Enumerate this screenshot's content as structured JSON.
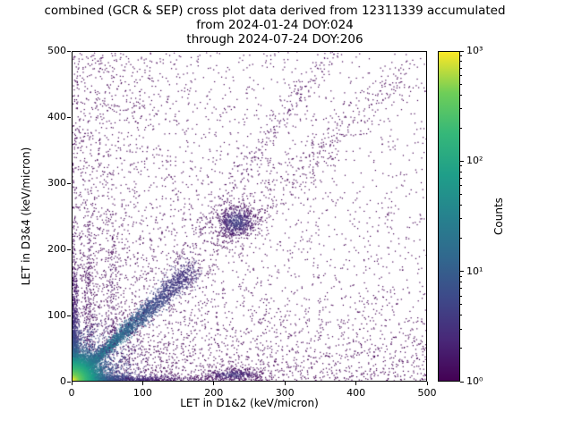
{
  "title": {
    "line1": "combined (GCR & SEP) cross plot data derived from 12311339 accumulated",
    "line2": "from 2024-01-24 DOY:024",
    "line3": "through 2024-07-24 DOY:206"
  },
  "chart_data": {
    "type": "heatmap",
    "title": "combined (GCR & SEP) cross plot data derived from 12311339 accumulated from 2024-01-24 DOY:024 through 2024-07-24 DOY:206",
    "xlabel": "LET in D1&2 (keV/micron)",
    "ylabel": "LET in D3&4 (keV/micron)",
    "xlim": [
      0,
      500
    ],
    "ylim": [
      0,
      500
    ],
    "xticks": [
      0,
      100,
      200,
      300,
      400,
      500
    ],
    "yticks": [
      0,
      100,
      200,
      300,
      400,
      500
    ],
    "grid": false,
    "legend": "none",
    "colorbar": {
      "label": "Counts",
      "scale": "log",
      "range": [
        1,
        1000
      ],
      "tick_labels": [
        "10⁰",
        "10¹",
        "10²",
        "10³"
      ],
      "colormap": "viridis",
      "stops": [
        "#440154",
        "#482878",
        "#3e4989",
        "#31688e",
        "#26828e",
        "#1f9e89",
        "#35b779",
        "#6ece58",
        "#fde725"
      ]
    },
    "features": [
      {
        "name": "origin-hotspot",
        "x": 0,
        "y": 0,
        "approx_peak_counts": 1000,
        "desc": "bright yellow-green dense core at origin fading through green and teal to purple"
      },
      {
        "name": "identity-diagonal",
        "desc": "dense correlated band along y=x from origin to ~170 keV/micron, sparser continuation to ~470"
      },
      {
        "name": "cluster",
        "x": 232,
        "y": 241,
        "desc": "dense blob of counts"
      },
      {
        "name": "bottom-band",
        "desc": "dense band of counts along y≈0 extending to x≈300, with a blob near x≈230"
      },
      {
        "name": "left-band",
        "desc": "dense band of counts along x≈0 extending up to y≈300"
      },
      {
        "name": "upper-diagonal-streak",
        "from": [
          140,
          175
        ],
        "to": [
          368,
          500
        ],
        "desc": "faint steep diagonal streak above main diagonal"
      },
      {
        "name": "background",
        "desc": "sparse single-count (dark purple) pixels scattered over the full plane, denser toward both axes"
      }
    ],
    "density_model": {
      "seed": 42,
      "components": [
        {
          "kind": "uniform",
          "n": 1300
        },
        {
          "kind": "axis_exp",
          "axis": "x",
          "n": 1600,
          "lambda": 115
        },
        {
          "kind": "axis_exp",
          "axis": "y",
          "n": 1600,
          "lambda": 85
        },
        {
          "kind": "diagonal_sparse",
          "n": 450,
          "start": 160,
          "end": 470,
          "jitter": 15
        },
        {
          "kind": "line",
          "n": 260,
          "x0": 140,
          "y0": 175,
          "x1": 368,
          "y1": 500,
          "jitter": 7,
          "t": 0.02
        },
        {
          "kind": "cluster",
          "n": 150,
          "cx": 22,
          "cy": 150,
          "sx": 4,
          "sy": 62,
          "t": 0.06
        },
        {
          "kind": "cluster",
          "n": 130,
          "cx": 56,
          "cy": 140,
          "sx": 5,
          "sy": 58,
          "t": 0.05
        },
        {
          "kind": "cluster",
          "n": 700,
          "cx": 232,
          "cy": 241,
          "sx": 15,
          "sy": 13,
          "t": 0.22
        },
        {
          "kind": "cluster",
          "n": 380,
          "cx": 228,
          "cy": 9,
          "sx": 22,
          "sy": 5,
          "t": 0.18
        },
        {
          "kind": "diagonal",
          "n": 3200,
          "len": 168,
          "j0": 1.2,
          "j1": 9
        },
        {
          "kind": "edge_exp",
          "axis": "x",
          "n": 1400,
          "lambda": 55,
          "spread": 4,
          "t0": 0.55,
          "tl": 75
        },
        {
          "kind": "edge_exp",
          "axis": "y",
          "n": 1400,
          "lambda": 55,
          "spread": 4,
          "t0": 0.55,
          "tl": 75
        },
        {
          "kind": "origin_blob",
          "n": 2500,
          "lambda": 38,
          "peak": 60,
          "falloff": 30
        },
        {
          "kind": "origin_blob",
          "n": 7000,
          "lambda": 13,
          "peak": 1000,
          "falloff": 11
        }
      ]
    }
  }
}
